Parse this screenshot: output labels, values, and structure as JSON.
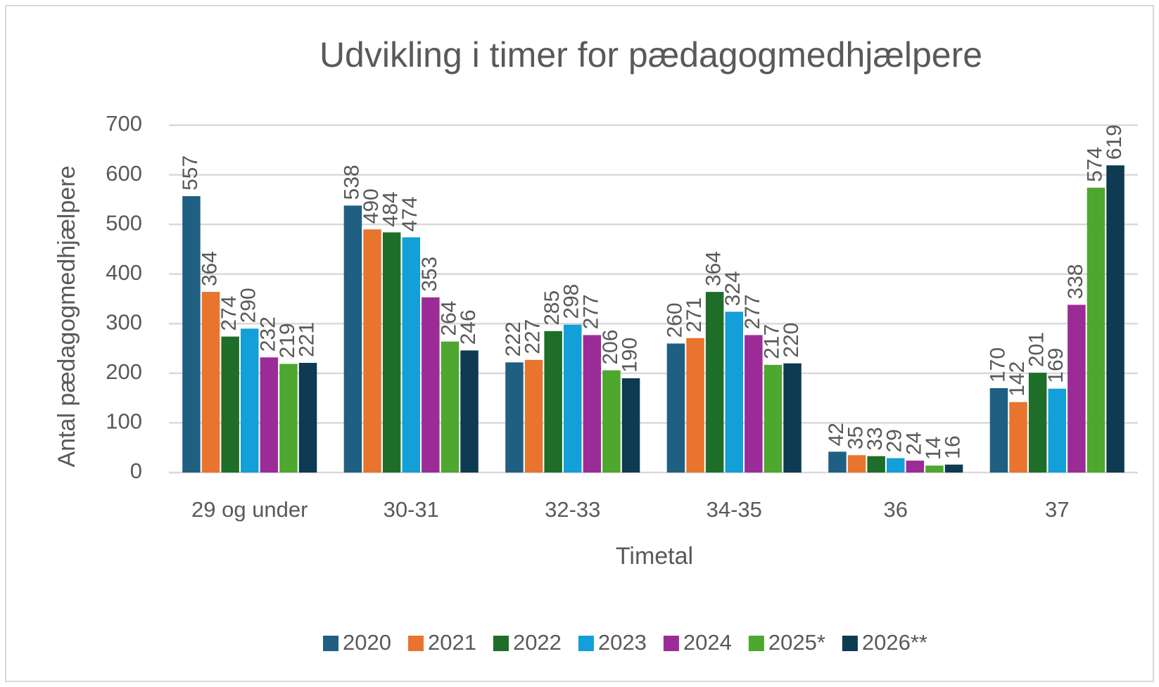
{
  "chart_data": {
    "type": "bar",
    "title": "Udvikling i timer for pædagogmedhjælpere",
    "x_label": "Timetal",
    "y_label": "Antal pædagogmedhjælpere",
    "categories": [
      "29 og under",
      "30-31",
      "32-33",
      "34-35",
      "36",
      "37"
    ],
    "series": [
      {
        "name": "2020",
        "color": "#1f5f82",
        "values": [
          557,
          538,
          222,
          260,
          42,
          170
        ]
      },
      {
        "name": "2021",
        "color": "#e8742e",
        "values": [
          364,
          490,
          227,
          271,
          35,
          142
        ]
      },
      {
        "name": "2022",
        "color": "#1e6e2a",
        "values": [
          274,
          484,
          285,
          364,
          33,
          201
        ]
      },
      {
        "name": "2023",
        "color": "#139fd8",
        "values": [
          290,
          474,
          298,
          324,
          29,
          169
        ]
      },
      {
        "name": "2024",
        "color": "#9b2c97",
        "values": [
          232,
          353,
          277,
          277,
          24,
          338
        ]
      },
      {
        "name": "2025*",
        "color": "#4ea72e",
        "values": [
          219,
          264,
          206,
          217,
          14,
          574
        ]
      },
      {
        "name": "2026**",
        "color": "#0e3a52",
        "values": [
          221,
          246,
          190,
          220,
          16,
          619
        ]
      }
    ],
    "ylim": [
      0,
      700
    ],
    "yticks": [
      0,
      100,
      200,
      300,
      400,
      500,
      600,
      700
    ],
    "grid": true,
    "legend": "bottom",
    "data_labels": true
  }
}
